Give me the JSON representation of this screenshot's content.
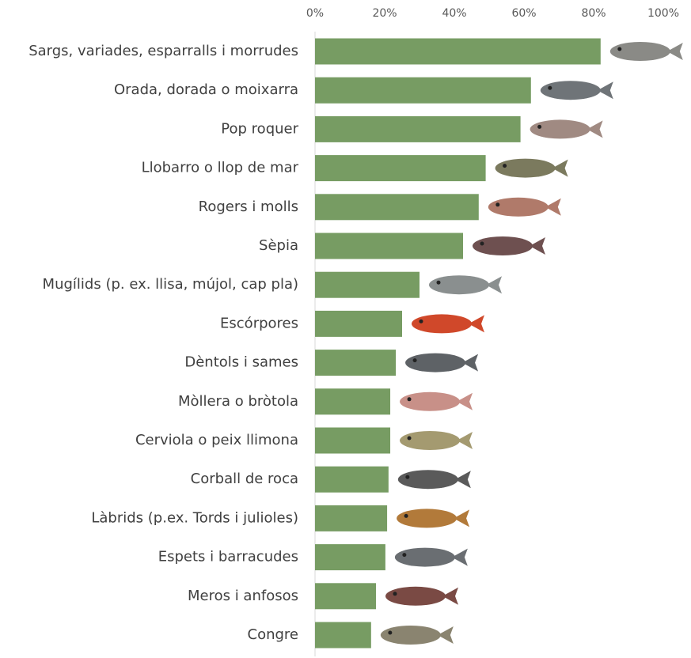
{
  "chart_data": {
    "type": "bar",
    "orientation": "horizontal",
    "categories": [
      "Sargs, variades, esparralls i morrudes",
      "Orada, dorada o moixarra",
      "Pop roquer",
      "Llobarro o llop de mar",
      "Rogers i molls",
      "Sèpia",
      "Mugílids (p. ex. llisa, mújol, cap pla)",
      "Escórpores",
      "Dèntols i sames",
      "Mòllera o bròtola",
      "Cerviola o peix llimona",
      "Corball de roca",
      "Làbrids (p.ex. Tords i julioles)",
      "Espets i barracudes",
      "Meros i anfosos",
      "Congre"
    ],
    "values": [
      82,
      62,
      59,
      49,
      47,
      42.5,
      30,
      25,
      23.2,
      21.6,
      21.6,
      21.1,
      20.7,
      20.2,
      17.5,
      16.1
    ],
    "color": "#779c63",
    "xlim": [
      0,
      100
    ],
    "xticks": [
      {
        "value": 0,
        "label": "0%"
      },
      {
        "value": 20,
        "label": "20%"
      },
      {
        "value": 40,
        "label": "40%"
      },
      {
        "value": 60,
        "label": "60%"
      },
      {
        "value": 80,
        "label": "80%"
      },
      {
        "value": 100,
        "label": "100%"
      }
    ]
  }
}
